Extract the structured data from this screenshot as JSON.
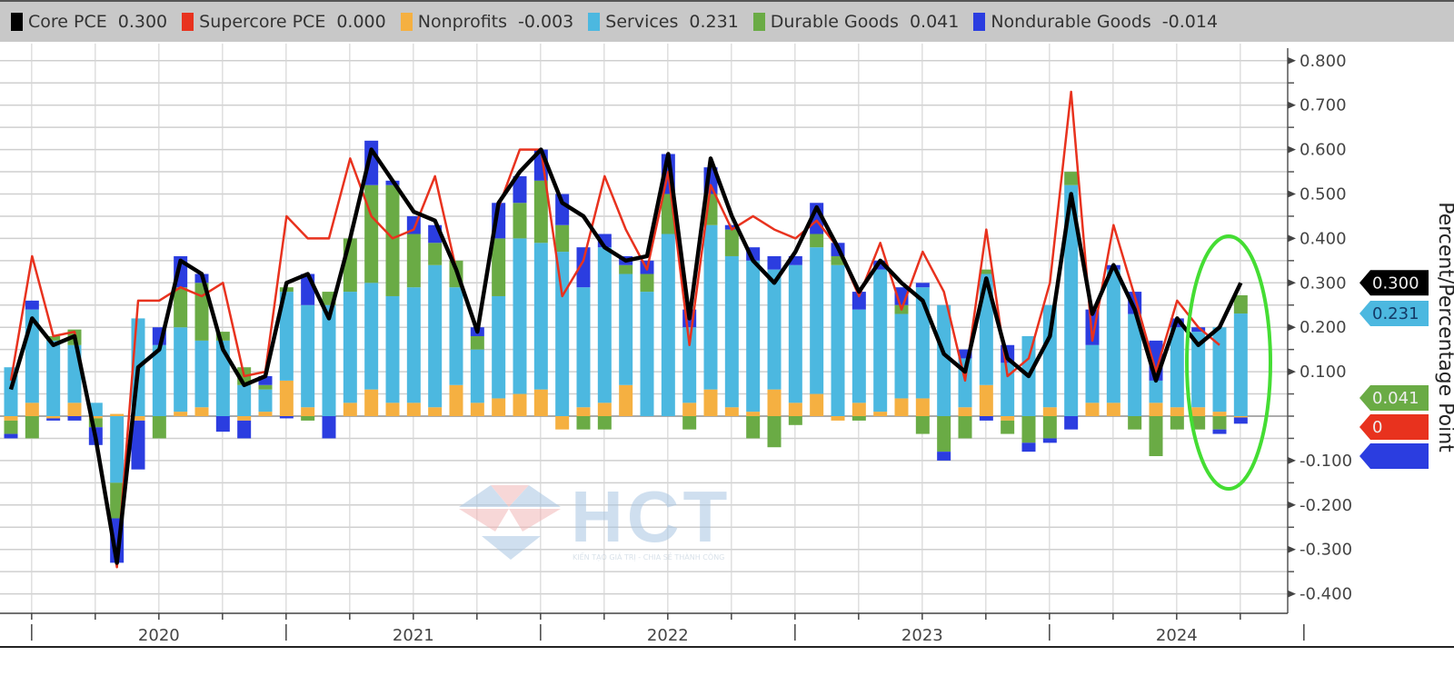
{
  "legend": [
    {
      "label": "Core PCE",
      "value": "0.300",
      "color": "#000000"
    },
    {
      "label": "Supercore PCE",
      "value": "0.000",
      "color": "#e8321e"
    },
    {
      "label": "Nonprofits",
      "value": "-0.003",
      "color": "#f5b041"
    },
    {
      "label": "Services",
      "value": "0.231",
      "color": "#4cb8e0"
    },
    {
      "label": "Durable Goods",
      "value": "0.041",
      "color": "#6aab45"
    },
    {
      "label": "Nondurable Goods",
      "value": "-0.014",
      "color": "#2b3de0"
    }
  ],
  "watermark": {
    "logo_text": "HCT",
    "tagline": "KIẾN TẠO GIÁ TRỊ - CHIA SẺ THÀNH CÔNG"
  },
  "annotation": {
    "shape": "ellipse",
    "color": "#44dd33",
    "highlights": "last three months"
  },
  "chart_data": {
    "type": "bar",
    "stacked": true,
    "title": "",
    "xlabel": "",
    "ylabel": "Percent/Percentage Point",
    "y_axis_side": "right",
    "ylim": [
      -0.44,
      0.85
    ],
    "y_ticks": [
      "0.800",
      "0.700",
      "0.600",
      "0.500",
      "0.400",
      "0.300",
      "0.200",
      "0.100",
      "0",
      "-0.100",
      "-0.200",
      "-0.300",
      "-0.400"
    ],
    "x_tick_labels": [
      "2020",
      "2021",
      "2022",
      "2023",
      "2024"
    ],
    "grid": true,
    "legend_position": "top",
    "x": [
      "2019-12",
      "2020-01",
      "2020-02",
      "2020-03",
      "2020-04",
      "2020-05",
      "2020-06",
      "2020-07",
      "2020-08",
      "2020-09",
      "2020-10",
      "2020-11",
      "2020-12",
      "2021-01",
      "2021-02",
      "2021-03",
      "2021-04",
      "2021-05",
      "2021-06",
      "2021-07",
      "2021-08",
      "2021-09",
      "2021-10",
      "2021-11",
      "2021-12",
      "2022-01",
      "2022-02",
      "2022-03",
      "2022-04",
      "2022-05",
      "2022-06",
      "2022-07",
      "2022-08",
      "2022-09",
      "2022-10",
      "2022-11",
      "2022-12",
      "2023-01",
      "2023-02",
      "2023-03",
      "2023-04",
      "2023-05",
      "2023-06",
      "2023-07",
      "2023-08",
      "2023-09",
      "2023-10",
      "2023-11",
      "2023-12",
      "2024-01",
      "2024-02",
      "2024-03",
      "2024-04",
      "2024-05",
      "2024-06",
      "2024-07",
      "2024-08",
      "2024-09",
      "2024-10"
    ],
    "bar_series": [
      {
        "name": "Nonprofits",
        "color": "#f5b041",
        "values": [
          -0.01,
          0.03,
          -0.005,
          0.03,
          -0.005,
          0.005,
          -0.01,
          0,
          0.01,
          0.02,
          0,
          -0.01,
          0.01,
          0.08,
          0.02,
          0,
          0.03,
          0.06,
          0.03,
          0.03,
          0.02,
          0.07,
          0.03,
          0.04,
          0.05,
          0.06,
          -0.03,
          0.02,
          0.03,
          0.07,
          0,
          0,
          0.03,
          0.06,
          0.02,
          0.01,
          0.06,
          0.03,
          0.05,
          -0.01,
          0.03,
          0.01,
          0.04,
          0.04,
          0,
          0.02,
          0.07,
          -0.01,
          0,
          0.02,
          0,
          0.03,
          0.03,
          0,
          0.03,
          0.02,
          0.02,
          0.01,
          -0.003
        ]
      },
      {
        "name": "Services",
        "color": "#4cb8e0",
        "values": [
          0.11,
          0.21,
          0.17,
          0.13,
          0.03,
          -0.15,
          0.22,
          0.16,
          0.19,
          0.15,
          0.17,
          0.07,
          0.05,
          0.2,
          0.23,
          0.25,
          0.25,
          0.24,
          0.24,
          0.26,
          0.32,
          0.22,
          0.12,
          0.23,
          0.35,
          0.33,
          0.37,
          0.27,
          0.35,
          0.25,
          0.28,
          0.41,
          0.17,
          0.37,
          0.34,
          0.34,
          0.27,
          0.31,
          0.33,
          0.34,
          0.21,
          0.32,
          0.19,
          0.25,
          0.25,
          0.11,
          0.25,
          0.12,
          0.18,
          0.23,
          0.52,
          0.13,
          0.3,
          0.23,
          0.05,
          0.18,
          0.17,
          0.19,
          0.231
        ]
      },
      {
        "name": "Durable Goods",
        "color": "#6aab45",
        "values": [
          -0.03,
          -0.05,
          0.01,
          0.035,
          -0.02,
          -0.08,
          0,
          -0.05,
          0.09,
          0.13,
          0.02,
          0.04,
          0.01,
          0.01,
          -0.01,
          0.03,
          0.12,
          0.22,
          0.25,
          0.12,
          0.05,
          0.06,
          0.03,
          0.13,
          0.08,
          0.14,
          0.06,
          -0.03,
          -0.03,
          0.02,
          0.04,
          0.09,
          -0.03,
          0.07,
          0.06,
          -0.05,
          -0.07,
          -0.02,
          0.03,
          0.02,
          -0.01,
          0,
          0.02,
          -0.04,
          -0.08,
          -0.05,
          0.01,
          -0.03,
          -0.06,
          -0.05,
          0.03,
          0,
          0,
          -0.03,
          -0.09,
          -0.03,
          -0.03,
          -0.03,
          0.041
        ]
      },
      {
        "name": "Nondurable Goods",
        "color": "#2b3de0",
        "values": [
          -0.01,
          0.02,
          -0.005,
          -0.01,
          -0.04,
          -0.1,
          -0.11,
          0.04,
          0.07,
          0.02,
          -0.035,
          -0.04,
          0.02,
          -0.005,
          0.07,
          -0.05,
          0,
          0.1,
          0.01,
          0.04,
          0.04,
          0,
          0.02,
          0.08,
          0.06,
          0.07,
          0.07,
          0.09,
          0.03,
          0.02,
          0.03,
          0.09,
          0.04,
          0.06,
          0.01,
          0.03,
          0.03,
          0.02,
          0.07,
          0.03,
          0.04,
          0.02,
          0.04,
          0.01,
          -0.02,
          0.02,
          -0.01,
          0.04,
          -0.02,
          -0.01,
          -0.03,
          0.08,
          0.01,
          0.05,
          0.09,
          0.02,
          0.01,
          -0.01,
          -0.014
        ]
      }
    ],
    "line_series": [
      {
        "name": "Supercore PCE",
        "color": "#e8321e",
        "values": [
          0.08,
          0.36,
          0.18,
          0.19,
          -0.05,
          -0.34,
          0.26,
          0.26,
          0.29,
          0.27,
          0.3,
          0.09,
          0.1,
          0.45,
          0.4,
          0.4,
          0.58,
          0.45,
          0.4,
          0.42,
          0.54,
          0.33,
          0.19,
          0.47,
          0.6,
          0.6,
          0.27,
          0.35,
          0.54,
          0.42,
          0.33,
          0.55,
          0.16,
          0.52,
          0.42,
          0.45,
          0.42,
          0.4,
          0.44,
          0.38,
          0.27,
          0.39,
          0.24,
          0.37,
          0.28,
          0.08,
          0.42,
          0.09,
          0.13,
          0.3,
          0.73,
          0.17,
          0.43,
          0.27,
          0.1,
          0.26,
          0.2,
          0.16,
          null
        ]
      },
      {
        "name": "Core PCE",
        "color": "#000000",
        "values": [
          0.06,
          0.22,
          0.16,
          0.18,
          -0.05,
          -0.33,
          0.11,
          0.15,
          0.35,
          0.32,
          0.15,
          0.07,
          0.09,
          0.3,
          0.32,
          0.22,
          0.4,
          0.6,
          0.53,
          0.46,
          0.44,
          0.33,
          0.19,
          0.48,
          0.55,
          0.6,
          0.48,
          0.45,
          0.38,
          0.35,
          0.36,
          0.59,
          0.22,
          0.58,
          0.45,
          0.35,
          0.3,
          0.37,
          0.47,
          0.38,
          0.28,
          0.35,
          0.3,
          0.26,
          0.14,
          0.1,
          0.31,
          0.13,
          0.09,
          0.18,
          0.5,
          0.23,
          0.34,
          0.24,
          0.08,
          0.22,
          0.16,
          0.2,
          0.3
        ]
      }
    ],
    "last_value_tags": [
      {
        "label": "0.300",
        "value": 0.3,
        "color": "#000000"
      },
      {
        "label": "0.041",
        "value": 0.041,
        "color": "#6aab45"
      },
      {
        "label": "0.231",
        "value": 0.231,
        "color": "#4cb8e0"
      },
      {
        "label": "0",
        "value": 0.0,
        "color": "#e8321e"
      },
      {
        "label": "",
        "value": -0.014,
        "color": "#2b3de0"
      }
    ]
  }
}
